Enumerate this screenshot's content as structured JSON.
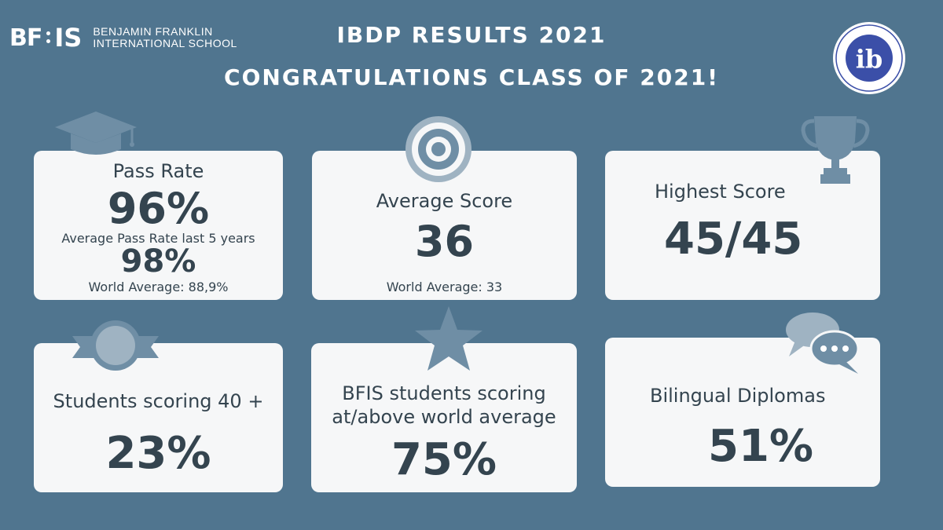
{
  "logo": {
    "mark_left": "BF",
    "mark_right": "IS",
    "name_line1": "BENJAMIN FRANKLIN",
    "name_line2": "INTERNATIONAL SCHOOL"
  },
  "header": {
    "title": "IBDP RESULTS 2021",
    "subtitle": "CONGRATULATIONS CLASS OF 2021!"
  },
  "ib_seal": {
    "letters": "ib"
  },
  "cards": {
    "pass_rate": {
      "label": "Pass Rate",
      "value": "96%",
      "sub_label": "Average Pass Rate last 5 years",
      "sub_value": "98%",
      "footnote": "World Average: 88,9%",
      "icon": "graduation-cap-icon"
    },
    "average_score": {
      "label": "Average Score",
      "value": "36",
      "footnote": "World Average: 33",
      "icon": "target-icon"
    },
    "highest_score": {
      "label": "Highest Score",
      "value": "45/45",
      "icon": "trophy-icon"
    },
    "students_40": {
      "label": "Students scoring 40 +",
      "value": "23%",
      "icon": "ribbon-badge-icon"
    },
    "above_world": {
      "label_line1": "BFIS  students scoring",
      "label_line2": "at/above world average",
      "value": "75%",
      "icon": "star-icon"
    },
    "bilingual": {
      "label": "Bilingual Diplomas",
      "value": "51%",
      "icon": "speech-bubbles-icon"
    }
  },
  "colors": {
    "background": "#50758f",
    "card": "#f6f7f8",
    "text_dark": "#34444f",
    "icon": "#6f8ea5"
  }
}
